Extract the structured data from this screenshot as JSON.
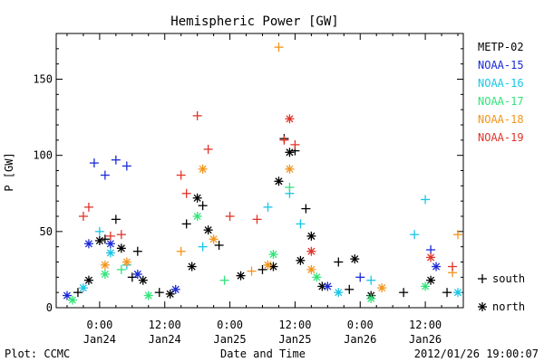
{
  "chart_data": {
    "type": "scatter",
    "title": "Hemispheric Power [GW]",
    "ylabel": "P [GW]",
    "xlabel": "Date and Time",
    "ylim": [
      0,
      180
    ],
    "yticks": [
      0,
      50,
      100,
      150
    ],
    "xlim": [
      "2012-01-23 16:00",
      "2012-01-26 19:00"
    ],
    "xticks": [
      {
        "x": "2012-01-24 00:00",
        "time": "0:00",
        "date": "Jan24"
      },
      {
        "x": "2012-01-24 12:00",
        "time": "12:00",
        "date": "Jan24"
      },
      {
        "x": "2012-01-25 00:00",
        "time": "0:00",
        "date": "Jan25"
      },
      {
        "x": "2012-01-25 12:00",
        "time": "12:00",
        "date": "Jan25"
      },
      {
        "x": "2012-01-26 00:00",
        "time": "0:00",
        "date": "Jan26"
      },
      {
        "x": "2012-01-26 12:00",
        "time": "12:00",
        "date": "Jan26"
      }
    ],
    "grid": false,
    "legend_position": "right",
    "marker_legend": {
      "plus": "south",
      "star": "north"
    },
    "series": [
      {
        "name": "METP-02",
        "color": "#000000",
        "points": [
          {
            "x": "2012-01-23 20:00",
            "y": 10,
            "m": "plus"
          },
          {
            "x": "2012-01-23 22:00",
            "y": 18,
            "m": "star"
          },
          {
            "x": "2012-01-24 00:00",
            "y": 44,
            "m": "star"
          },
          {
            "x": "2012-01-24 01:00",
            "y": 45,
            "m": "plus"
          },
          {
            "x": "2012-01-24 03:00",
            "y": 58,
            "m": "plus"
          },
          {
            "x": "2012-01-24 04:00",
            "y": 39,
            "m": "star"
          },
          {
            "x": "2012-01-24 06:00",
            "y": 20,
            "m": "plus"
          },
          {
            "x": "2012-01-24 07:00",
            "y": 37,
            "m": "plus"
          },
          {
            "x": "2012-01-24 08:00",
            "y": 18,
            "m": "star"
          },
          {
            "x": "2012-01-24 11:00",
            "y": 10,
            "m": "plus"
          },
          {
            "x": "2012-01-24 13:00",
            "y": 9,
            "m": "star"
          },
          {
            "x": "2012-01-24 16:00",
            "y": 55,
            "m": "plus"
          },
          {
            "x": "2012-01-24 17:00",
            "y": 27,
            "m": "star"
          },
          {
            "x": "2012-01-24 18:00",
            "y": 72,
            "m": "star"
          },
          {
            "x": "2012-01-24 19:00",
            "y": 67,
            "m": "plus"
          },
          {
            "x": "2012-01-24 20:00",
            "y": 51,
            "m": "star"
          },
          {
            "x": "2012-01-24 22:00",
            "y": 41,
            "m": "plus"
          },
          {
            "x": "2012-01-25 02:00",
            "y": 21,
            "m": "star"
          },
          {
            "x": "2012-01-25 06:00",
            "y": 25,
            "m": "plus"
          },
          {
            "x": "2012-01-25 08:00",
            "y": 27,
            "m": "star"
          },
          {
            "x": "2012-01-25 09:00",
            "y": 83,
            "m": "star"
          },
          {
            "x": "2012-01-25 10:00",
            "y": 111,
            "m": "plus"
          },
          {
            "x": "2012-01-25 11:00",
            "y": 102,
            "m": "star"
          },
          {
            "x": "2012-01-25 12:00",
            "y": 103,
            "m": "plus"
          },
          {
            "x": "2012-01-25 13:00",
            "y": 31,
            "m": "star"
          },
          {
            "x": "2012-01-25 14:00",
            "y": 65,
            "m": "plus"
          },
          {
            "x": "2012-01-25 15:00",
            "y": 47,
            "m": "star"
          },
          {
            "x": "2012-01-25 17:00",
            "y": 14,
            "m": "star"
          },
          {
            "x": "2012-01-25 20:00",
            "y": 30,
            "m": "plus"
          },
          {
            "x": "2012-01-25 22:00",
            "y": 12,
            "m": "plus"
          },
          {
            "x": "2012-01-25 23:00",
            "y": 32,
            "m": "star"
          },
          {
            "x": "2012-01-26 02:00",
            "y": 8,
            "m": "star"
          },
          {
            "x": "2012-01-26 08:00",
            "y": 10,
            "m": "plus"
          },
          {
            "x": "2012-01-26 13:00",
            "y": 18,
            "m": "star"
          },
          {
            "x": "2012-01-26 16:00",
            "y": 10,
            "m": "plus"
          }
        ]
      },
      {
        "name": "NOAA-15",
        "color": "#1a2ad6",
        "points": [
          {
            "x": "2012-01-23 18:00",
            "y": 8,
            "m": "star"
          },
          {
            "x": "2012-01-23 22:00",
            "y": 42,
            "m": "star"
          },
          {
            "x": "2012-01-23 23:00",
            "y": 95,
            "m": "plus"
          },
          {
            "x": "2012-01-24 01:00",
            "y": 87,
            "m": "plus"
          },
          {
            "x": "2012-01-24 02:00",
            "y": 42,
            "m": "star"
          },
          {
            "x": "2012-01-24 03:00",
            "y": 97,
            "m": "plus"
          },
          {
            "x": "2012-01-24 05:00",
            "y": 93,
            "m": "plus"
          },
          {
            "x": "2012-01-24 07:00",
            "y": 22,
            "m": "star"
          },
          {
            "x": "2012-01-24 14:00",
            "y": 12,
            "m": "star"
          },
          {
            "x": "2012-01-25 18:00",
            "y": 14,
            "m": "star"
          },
          {
            "x": "2012-01-26 00:00",
            "y": 20,
            "m": "plus"
          },
          {
            "x": "2012-01-26 13:00",
            "y": 38,
            "m": "plus"
          },
          {
            "x": "2012-01-26 14:00",
            "y": 27,
            "m": "star"
          }
        ]
      },
      {
        "name": "NOAA-16",
        "color": "#19c6e6",
        "points": [
          {
            "x": "2012-01-23 21:00",
            "y": 13,
            "m": "star"
          },
          {
            "x": "2012-01-24 00:00",
            "y": 50,
            "m": "plus"
          },
          {
            "x": "2012-01-24 02:00",
            "y": 36,
            "m": "star"
          },
          {
            "x": "2012-01-24 05:00",
            "y": 28,
            "m": "plus"
          },
          {
            "x": "2012-01-24 19:00",
            "y": 40,
            "m": "plus"
          },
          {
            "x": "2012-01-25 07:00",
            "y": 66,
            "m": "plus"
          },
          {
            "x": "2012-01-25 11:00",
            "y": 75,
            "m": "plus"
          },
          {
            "x": "2012-01-25 13:00",
            "y": 55,
            "m": "plus"
          },
          {
            "x": "2012-01-25 20:00",
            "y": 10,
            "m": "star"
          },
          {
            "x": "2012-01-26 02:00",
            "y": 18,
            "m": "plus"
          },
          {
            "x": "2012-01-26 10:00",
            "y": 48,
            "m": "plus"
          },
          {
            "x": "2012-01-26 12:00",
            "y": 71,
            "m": "plus"
          },
          {
            "x": "2012-01-26 18:00",
            "y": 10,
            "m": "star"
          }
        ]
      },
      {
        "name": "NOAA-17",
        "color": "#33e37a",
        "points": [
          {
            "x": "2012-01-23 19:00",
            "y": 5,
            "m": "star"
          },
          {
            "x": "2012-01-24 01:00",
            "y": 22,
            "m": "star"
          },
          {
            "x": "2012-01-24 04:00",
            "y": 25,
            "m": "plus"
          },
          {
            "x": "2012-01-24 09:00",
            "y": 8,
            "m": "star"
          },
          {
            "x": "2012-01-24 18:00",
            "y": 60,
            "m": "star"
          },
          {
            "x": "2012-01-24 23:00",
            "y": 18,
            "m": "plus"
          },
          {
            "x": "2012-01-25 08:00",
            "y": 35,
            "m": "star"
          },
          {
            "x": "2012-01-25 11:00",
            "y": 79,
            "m": "plus"
          },
          {
            "x": "2012-01-25 16:00",
            "y": 20,
            "m": "star"
          },
          {
            "x": "2012-01-26 02:00",
            "y": 6,
            "m": "star"
          },
          {
            "x": "2012-01-26 12:00",
            "y": 14,
            "m": "star"
          }
        ]
      },
      {
        "name": "NOAA-18",
        "color": "#f2951b",
        "points": [
          {
            "x": "2012-01-24 01:00",
            "y": 28,
            "m": "star"
          },
          {
            "x": "2012-01-24 05:00",
            "y": 30,
            "m": "star"
          },
          {
            "x": "2012-01-24 15:00",
            "y": 37,
            "m": "plus"
          },
          {
            "x": "2012-01-24 19:00",
            "y": 91,
            "m": "star"
          },
          {
            "x": "2012-01-24 21:00",
            "y": 45,
            "m": "star"
          },
          {
            "x": "2012-01-25 04:00",
            "y": 24,
            "m": "plus"
          },
          {
            "x": "2012-01-25 07:00",
            "y": 28,
            "m": "star"
          },
          {
            "x": "2012-01-25 09:00",
            "y": 171,
            "m": "plus"
          },
          {
            "x": "2012-01-25 11:00",
            "y": 91,
            "m": "star"
          },
          {
            "x": "2012-01-25 15:00",
            "y": 25,
            "m": "star"
          },
          {
            "x": "2012-01-26 04:00",
            "y": 13,
            "m": "star"
          },
          {
            "x": "2012-01-26 17:00",
            "y": 23,
            "m": "plus"
          },
          {
            "x": "2012-01-26 18:00",
            "y": 48,
            "m": "plus"
          }
        ]
      },
      {
        "name": "NOAA-19",
        "color": "#e0352a",
        "points": [
          {
            "x": "2012-01-23 21:00",
            "y": 60,
            "m": "plus"
          },
          {
            "x": "2012-01-23 22:00",
            "y": 66,
            "m": "plus"
          },
          {
            "x": "2012-01-24 02:00",
            "y": 47,
            "m": "plus"
          },
          {
            "x": "2012-01-24 04:00",
            "y": 48,
            "m": "plus"
          },
          {
            "x": "2012-01-24 15:00",
            "y": 87,
            "m": "plus"
          },
          {
            "x": "2012-01-24 16:00",
            "y": 75,
            "m": "plus"
          },
          {
            "x": "2012-01-24 18:00",
            "y": 126,
            "m": "plus"
          },
          {
            "x": "2012-01-24 20:00",
            "y": 104,
            "m": "plus"
          },
          {
            "x": "2012-01-25 00:00",
            "y": 60,
            "m": "plus"
          },
          {
            "x": "2012-01-25 05:00",
            "y": 58,
            "m": "plus"
          },
          {
            "x": "2012-01-25 10:00",
            "y": 110,
            "m": "plus"
          },
          {
            "x": "2012-01-25 11:00",
            "y": 124,
            "m": "star"
          },
          {
            "x": "2012-01-25 12:00",
            "y": 107,
            "m": "plus"
          },
          {
            "x": "2012-01-25 15:00",
            "y": 37,
            "m": "star"
          },
          {
            "x": "2012-01-26 13:00",
            "y": 33,
            "m": "star"
          },
          {
            "x": "2012-01-26 17:00",
            "y": 27,
            "m": "plus"
          }
        ]
      }
    ]
  },
  "footer": {
    "plot_credit": "Plot: CCMC",
    "timestamp": "2012/01/26 19:00:07"
  }
}
